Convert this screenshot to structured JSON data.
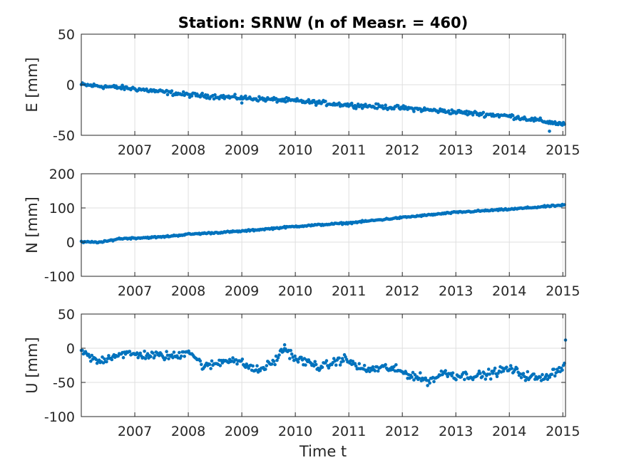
{
  "chart_data": {
    "type": "scatter",
    "title": "Station: SRNW (n of Measr. = 460)",
    "xlabel": "Time t",
    "marker_color": "#0072BD",
    "grid": true,
    "xlim": [
      2006.0,
      2015.05
    ],
    "xticks": [
      2007,
      2008,
      2009,
      2010,
      2011,
      2012,
      2013,
      2014,
      2015
    ],
    "n_points": 460,
    "panels": [
      {
        "name": "E",
        "ylabel": "E [mm]",
        "ylim": [
          -50,
          50
        ],
        "yticks": [
          -50,
          0,
          50
        ],
        "trend": [
          [
            2006.0,
            0
          ],
          [
            2007.0,
            -4
          ],
          [
            2008.0,
            -10
          ],
          [
            2009.0,
            -13
          ],
          [
            2010.0,
            -16
          ],
          [
            2011.0,
            -20
          ],
          [
            2012.0,
            -23
          ],
          [
            2013.0,
            -27
          ],
          [
            2014.0,
            -31
          ],
          [
            2015.0,
            -39
          ]
        ],
        "noise_mm": 1.6,
        "outliers": [
          [
            2009.0,
            -18
          ],
          [
            2014.75,
            -46
          ]
        ]
      },
      {
        "name": "N",
        "ylabel": "N [mm]",
        "ylim": [
          -100,
          200
        ],
        "yticks": [
          -100,
          0,
          100,
          200
        ],
        "trend": [
          [
            2006.0,
            0
          ],
          [
            2006.4,
            0
          ],
          [
            2006.7,
            10
          ],
          [
            2007.5,
            15
          ],
          [
            2008.0,
            23
          ],
          [
            2009.0,
            32
          ],
          [
            2010.0,
            46
          ],
          [
            2011.0,
            56
          ],
          [
            2012.0,
            72
          ],
          [
            2013.0,
            87
          ],
          [
            2014.0,
            96
          ],
          [
            2015.0,
            108
          ]
        ],
        "noise_mm": 1.7,
        "outliers": []
      },
      {
        "name": "U",
        "ylabel": "U [mm]",
        "ylim": [
          -100,
          50
        ],
        "yticks": [
          -100,
          -50,
          0,
          50
        ],
        "trend": [
          [
            2006.0,
            -5
          ],
          [
            2006.3,
            -20
          ],
          [
            2006.7,
            -8
          ],
          [
            2007.2,
            -10
          ],
          [
            2007.8,
            -12
          ],
          [
            2008.0,
            -2
          ],
          [
            2008.3,
            -28
          ],
          [
            2008.8,
            -15
          ],
          [
            2009.0,
            -22
          ],
          [
            2009.3,
            -33
          ],
          [
            2009.6,
            -20
          ],
          [
            2009.8,
            0
          ],
          [
            2010.0,
            -15
          ],
          [
            2010.5,
            -28
          ],
          [
            2010.9,
            -15
          ],
          [
            2011.3,
            -32
          ],
          [
            2011.7,
            -28
          ],
          [
            2012.0,
            -35
          ],
          [
            2012.5,
            -48
          ],
          [
            2012.8,
            -35
          ],
          [
            2013.0,
            -40
          ],
          [
            2013.5,
            -40
          ],
          [
            2014.0,
            -30
          ],
          [
            2014.3,
            -40
          ],
          [
            2014.6,
            -45
          ],
          [
            2015.0,
            -27
          ]
        ],
        "noise_mm": 4.5,
        "outliers": [
          [
            2009.8,
            5
          ],
          [
            2015.05,
            12
          ]
        ]
      }
    ]
  }
}
